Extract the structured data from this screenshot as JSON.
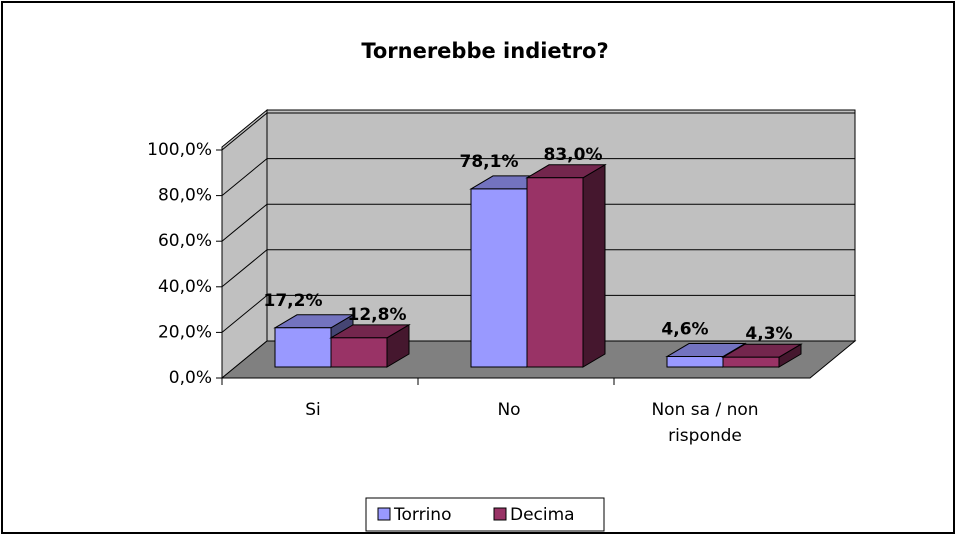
{
  "chart_data": {
    "type": "bar3d",
    "title": "Tornerebbe indietro?",
    "categories": [
      "Si",
      "No",
      "Non sa / non risponde"
    ],
    "series": [
      {
        "name": "Torrino",
        "color": "#9999ff",
        "values": [
          17.2,
          78.1,
          4.6
        ],
        "value_labels": [
          "17,2%",
          "78,1%",
          "4,6%"
        ]
      },
      {
        "name": "Decima",
        "color": "#993366",
        "values": [
          12.8,
          83.0,
          4.3
        ],
        "value_labels": [
          "12,8%",
          "83,0%",
          "4,3%"
        ]
      }
    ],
    "ylim": [
      0,
      100
    ],
    "yticks": [
      {
        "value": 0,
        "label": "0,0%"
      },
      {
        "value": 20,
        "label": "20,0%"
      },
      {
        "value": 40,
        "label": "40,0%"
      },
      {
        "value": 60,
        "label": "60,0%"
      },
      {
        "value": 80,
        "label": "80,0%"
      },
      {
        "value": 100,
        "label": "100,0%"
      }
    ],
    "grid": true,
    "legend": "bottom"
  }
}
